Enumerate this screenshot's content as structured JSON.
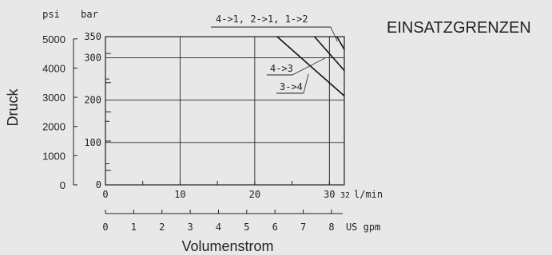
{
  "chart_data": {
    "type": "line",
    "title": "EINSATZGRENZEN",
    "ylabel": "Druck",
    "xlabel": "Volumenstrom",
    "y_unit_bar": "bar",
    "y_unit_psi": "psi",
    "x_unit_lmin": "l/min",
    "x_unit_gpm": "US gpm",
    "xlim_lmin": [
      0,
      32
    ],
    "ylim_bar": [
      0,
      350
    ],
    "grid": true,
    "x_ticks_lmin": [
      "0",
      "10",
      "20",
      "30",
      "32"
    ],
    "y_ticks_bar": [
      "0",
      "100",
      "200",
      "300",
      "350"
    ],
    "psi_ticks": [
      "0",
      "1000",
      "2000",
      "3000",
      "4000",
      "5000"
    ],
    "gpm_ticks": [
      "0",
      "1",
      "2",
      "3",
      "4",
      "5",
      "6",
      "7",
      "8"
    ],
    "series": [
      {
        "name": "4->1, 2->1, 1->2",
        "x": [
          31,
          32
        ],
        "y": [
          350,
          320
        ]
      },
      {
        "name": "4->3",
        "x": [
          28,
          32
        ],
        "y": [
          350,
          270
        ]
      },
      {
        "name": "3->4",
        "x": [
          23,
          32
        ],
        "y": [
          350,
          210
        ]
      }
    ]
  }
}
